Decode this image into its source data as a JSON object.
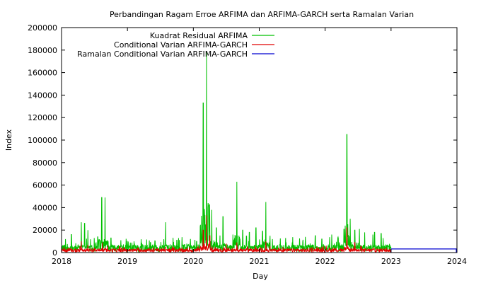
{
  "chart_data": {
    "type": "line",
    "title": "Perbandingan Ragam Erroe ARFIMA dan ARFIMA-GARCH serta Ramalan Varian",
    "xlabel": "Day",
    "ylabel": "Index",
    "xlim": [
      2018,
      2024
    ],
    "ylim": [
      0,
      200000
    ],
    "x_ticks": [
      "2018",
      "2019",
      "2020",
      "2021",
      "2022",
      "2023",
      "2024"
    ],
    "y_ticks": [
      "0",
      "20000",
      "40000",
      "60000",
      "80000",
      "100000",
      "120000",
      "140000",
      "160000",
      "180000",
      "200000"
    ],
    "grid": false,
    "legend_position": "top-center",
    "series": [
      {
        "name": "Kuadrat Residual ARFIMA",
        "color": "#00c000",
        "spikes": [
          [
            2018.06,
            12000
          ],
          [
            2018.15,
            16000
          ],
          [
            2018.3,
            27000
          ],
          [
            2018.35,
            26000
          ],
          [
            2018.4,
            20000
          ],
          [
            2018.55,
            14000
          ],
          [
            2018.61,
            49000
          ],
          [
            2018.66,
            49000
          ],
          [
            2018.75,
            13000
          ],
          [
            2018.9,
            11000
          ],
          [
            2019.1,
            10000
          ],
          [
            2019.35,
            9000
          ],
          [
            2019.58,
            27000
          ],
          [
            2019.75,
            11000
          ],
          [
            2019.9,
            8000
          ],
          [
            2020.05,
            10000
          ],
          [
            2020.15,
            133000
          ],
          [
            2020.2,
            178000
          ],
          [
            2020.23,
            42000
          ],
          [
            2020.28,
            38000
          ],
          [
            2020.35,
            22000
          ],
          [
            2020.45,
            32000
          ],
          [
            2020.6,
            16000
          ],
          [
            2020.66,
            63000
          ],
          [
            2020.75,
            20000
          ],
          [
            2020.85,
            18000
          ],
          [
            2020.95,
            22000
          ],
          [
            2021.05,
            19000
          ],
          [
            2021.1,
            45000
          ],
          [
            2021.2,
            12000
          ],
          [
            2021.4,
            13000
          ],
          [
            2021.5,
            9000
          ],
          [
            2021.7,
            14000
          ],
          [
            2021.85,
            15000
          ],
          [
            2021.95,
            12000
          ],
          [
            2022.1,
            16000
          ],
          [
            2022.2,
            12000
          ],
          [
            2022.33,
            105000
          ],
          [
            2022.38,
            30000
          ],
          [
            2022.45,
            20000
          ],
          [
            2022.52,
            21000
          ],
          [
            2022.6,
            18000
          ],
          [
            2022.75,
            18000
          ],
          [
            2022.85,
            17000
          ],
          [
            2022.95,
            6000
          ]
        ],
        "baseline": 3000
      },
      {
        "name": "Conditional Varian ARFIMA-GARCH",
        "color": "#e00000",
        "spikes": [
          [
            2018.3,
            10000
          ],
          [
            2018.4,
            7000
          ],
          [
            2018.62,
            9000
          ],
          [
            2018.7,
            6000
          ],
          [
            2019.58,
            5000
          ],
          [
            2020.15,
            20000
          ],
          [
            2020.2,
            33000
          ],
          [
            2020.25,
            15000
          ],
          [
            2020.5,
            8000
          ],
          [
            2020.66,
            9000
          ],
          [
            2021.1,
            10000
          ],
          [
            2022.33,
            22000
          ],
          [
            2022.45,
            9000
          ]
        ],
        "baseline": 2500
      },
      {
        "name": "Ramalan Conditional Varian ARFIMA-GARCH",
        "color": "#0000d0",
        "x": [
          2023.0,
          2024.0
        ],
        "y": [
          3200,
          3200
        ]
      }
    ]
  }
}
